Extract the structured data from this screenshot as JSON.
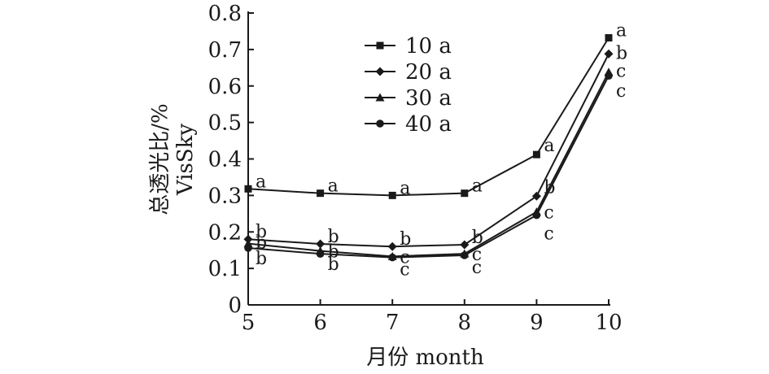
{
  "chart_data": {
    "type": "line",
    "xlabel": "月份 month",
    "ylabel": "总透光比/%",
    "ylabel_en": "VisSky",
    "xlim": [
      5,
      10
    ],
    "ylim": [
      0,
      0.8
    ],
    "x_ticks": [
      5,
      6,
      7,
      8,
      9,
      10
    ],
    "y_ticks": [
      0,
      0.1,
      0.2,
      0.3,
      0.4,
      0.5,
      0.6,
      0.7,
      0.8
    ],
    "y_tick_labels": [
      "0",
      "0.1",
      "0.2",
      "0.3",
      "0.4",
      "0.5",
      "0.6",
      "0.7",
      "0.8"
    ],
    "x": [
      5,
      6,
      7,
      8,
      9,
      10
    ],
    "legend_position": "top-center",
    "grid": false,
    "series": [
      {
        "name": "10 a",
        "marker": "square",
        "values": [
          0.318,
          0.306,
          0.3,
          0.306,
          0.412,
          0.732
        ],
        "labels": [
          "a",
          "a",
          "a",
          "a",
          "a",
          "a"
        ]
      },
      {
        "name": "20 a",
        "marker": "diamond",
        "values": [
          0.18,
          0.167,
          0.16,
          0.165,
          0.298,
          0.688
        ],
        "labels": [
          "b",
          "b",
          "b",
          "b",
          "b",
          "b"
        ]
      },
      {
        "name": "30 a",
        "marker": "triangle",
        "values": [
          0.168,
          0.148,
          0.133,
          0.14,
          0.255,
          0.638
        ],
        "labels": [
          "b",
          "b",
          "c",
          "c",
          "c",
          "c"
        ]
      },
      {
        "name": "40 a",
        "marker": "circle",
        "values": [
          0.156,
          0.14,
          0.13,
          0.136,
          0.246,
          0.628
        ],
        "labels": [
          "b",
          "b",
          "c",
          "c",
          "c",
          "c"
        ]
      }
    ]
  }
}
